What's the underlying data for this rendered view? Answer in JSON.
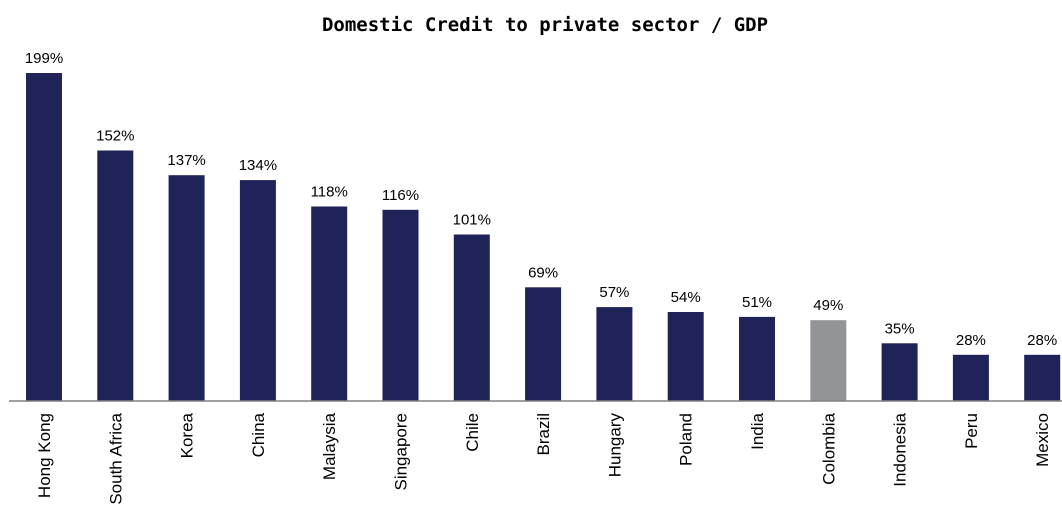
{
  "chart_data": {
    "type": "bar",
    "title": "Domestic Credit to private sector / GDP",
    "categories": [
      "Hong Kong",
      "South Africa",
      "Korea",
      "China",
      "Malaysia",
      "Singapore",
      "Chile",
      "Brazil",
      "Hungary",
      "Poland",
      "India",
      "Colombia",
      "Indonesia",
      "Peru",
      "Mexico"
    ],
    "values": [
      199,
      152,
      137,
      134,
      118,
      116,
      101,
      69,
      57,
      54,
      51,
      49,
      35,
      28,
      28
    ],
    "value_labels": [
      "199%",
      "152%",
      "137%",
      "134%",
      "118%",
      "116%",
      "101%",
      "69%",
      "57%",
      "54%",
      "51%",
      "49%",
      "35%",
      "28%",
      "28%"
    ],
    "unit": "%",
    "ylim": [
      0,
      199
    ],
    "grid": false,
    "legend": "none",
    "colors": {
      "default": "#1f2358",
      "highlight": "#939497",
      "highlight_category": "Colombia",
      "axis": "#808080"
    }
  }
}
